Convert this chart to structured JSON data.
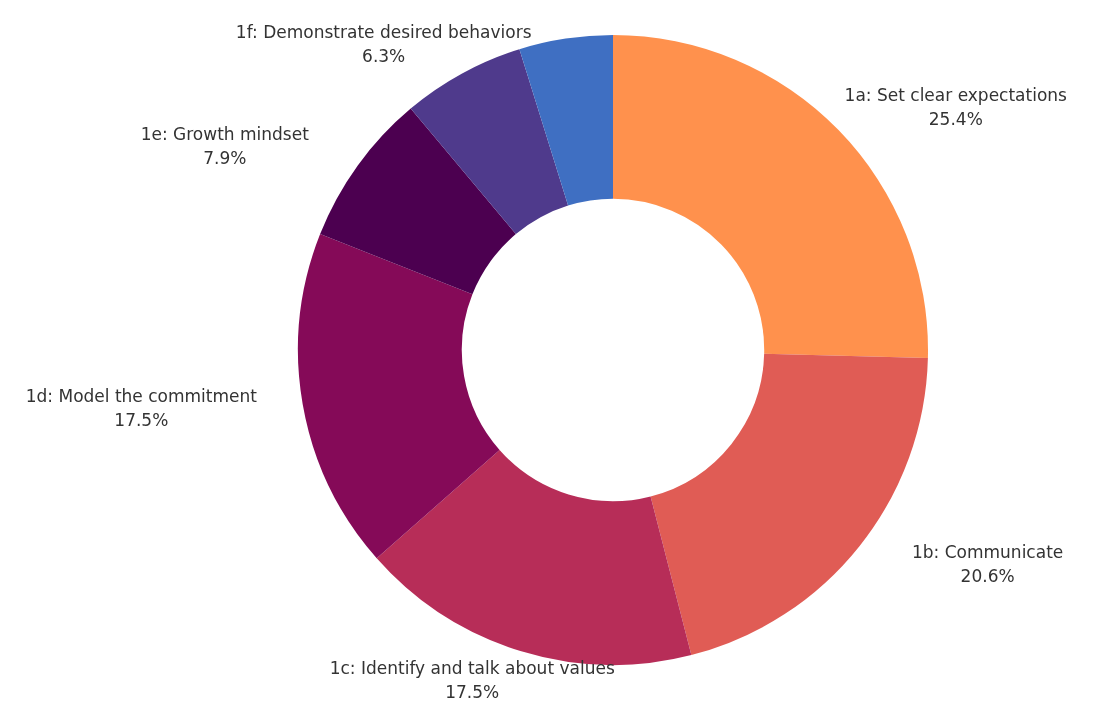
{
  "chart_data": {
    "type": "donut",
    "categories": [
      "1a: Set clear expectations",
      "1b: Communicate",
      "1c: Identify and talk about values",
      "1d: Model the commitment",
      "1e: Growth mindset",
      "1f: Demonstrate desired behaviors",
      null
    ],
    "values": [
      25.4,
      20.6,
      17.5,
      17.5,
      7.9,
      6.3,
      4.8
    ],
    "value_labels": [
      "25.4%",
      "20.6%",
      "17.5%",
      "17.5%",
      "7.9%",
      "6.3%",
      null
    ],
    "colors": [
      "#ff914d",
      "#e05c55",
      "#b72d58",
      "#850a58",
      "#4c0050",
      "#4f3a8c",
      "#3f6fc2"
    ],
    "legend": false
  }
}
